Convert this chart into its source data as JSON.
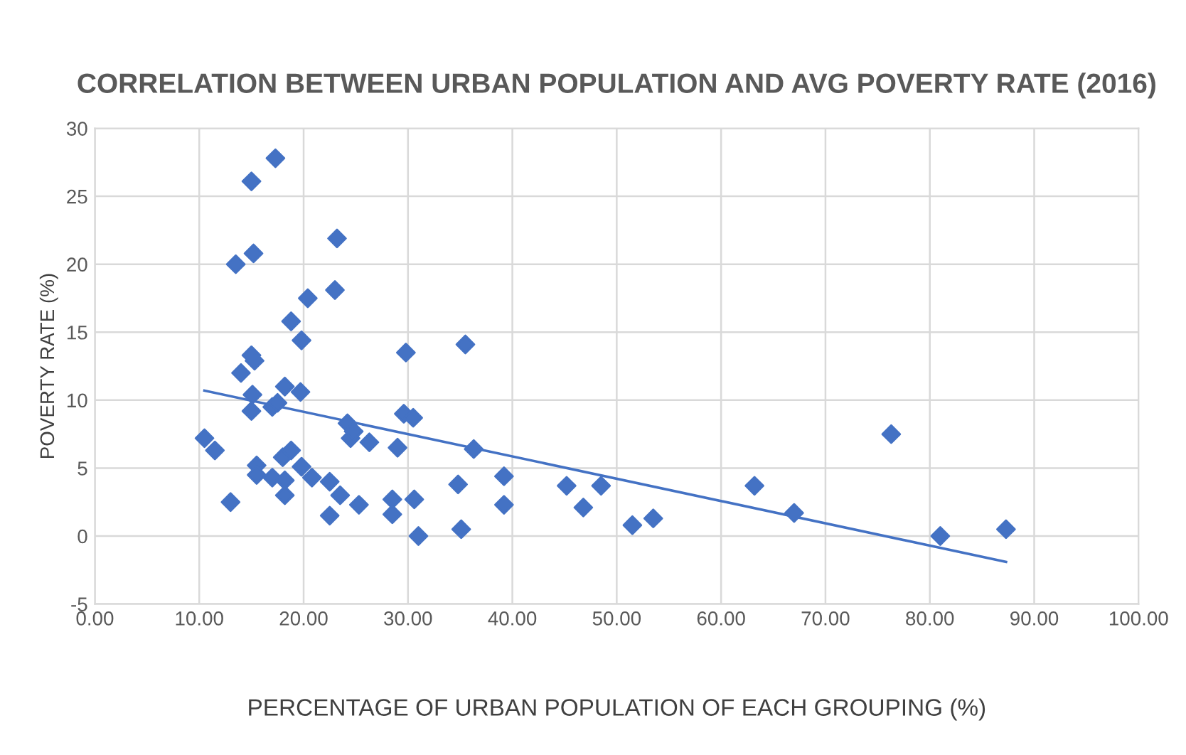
{
  "chart_data": {
    "type": "scatter",
    "title": "CORRELATION BETWEEN URBAN POPULATION AND AVG POVERTY RATE (2016)",
    "xlabel": "PERCENTAGE OF URBAN POPULATION OF EACH GROUPING (%)",
    "ylabel": "POVERTY RATE (%)",
    "series": [
      {
        "color": "#4472c4",
        "marker": "diamond",
        "x": [
          10.5,
          11.5,
          13,
          13.5,
          14,
          15,
          15.2,
          15,
          15.3,
          15.1,
          15,
          15.5,
          15.5,
          17,
          17.3,
          17,
          17.5,
          18,
          18.2,
          18.2,
          18.2,
          18.8,
          18.8,
          19.7,
          19.8,
          19.8,
          20.4,
          20.8,
          22.5,
          22.5,
          23,
          23.2,
          23.5,
          24.2,
          24.5,
          24.8,
          25.3,
          26.3,
          28.5,
          28.5,
          29,
          29.8,
          29.6,
          30.5,
          30.6,
          31,
          34.8,
          35.1,
          35.5,
          36.3,
          39.2,
          39.2,
          45.2,
          46.8,
          48.5,
          51.5,
          53.5,
          63.2,
          67,
          76.3,
          81,
          87.3
        ],
        "values": [
          7.2,
          6.3,
          2.5,
          20,
          12,
          26.1,
          20.8,
          13.3,
          12.9,
          10.4,
          9.2,
          5.2,
          4.5,
          4.3,
          27.8,
          9.5,
          9.8,
          5.8,
          4.1,
          3,
          11,
          6.3,
          15.8,
          10.6,
          14.4,
          5.1,
          17.5,
          4.3,
          4,
          1.5,
          18.1,
          21.9,
          3,
          8.3,
          7.2,
          7.7,
          2.3,
          6.9,
          2.7,
          1.6,
          6.5,
          13.5,
          9,
          8.7,
          2.7,
          0,
          3.8,
          0.5,
          14.1,
          6.4,
          4.4,
          2.3,
          3.7,
          2.1,
          3.7,
          0.8,
          1.3,
          3.7,
          1.7,
          7.5,
          0,
          0.5
        ]
      },
      {
        "type": "line",
        "color": "#4472c4",
        "marker": "none",
        "line_style": "solid",
        "x": [
          10.5,
          87.3
        ],
        "values": [
          10.7,
          -1.9
        ]
      }
    ],
    "xlim": [
      0,
      100
    ],
    "xticks": [
      {
        "value": 0,
        "label": "0.00"
      },
      {
        "value": 10,
        "label": "10.00"
      },
      {
        "value": 20,
        "label": "20.00"
      },
      {
        "value": 30,
        "label": "30.00"
      },
      {
        "value": 40,
        "label": "40.00"
      },
      {
        "value": 50,
        "label": "50.00"
      },
      {
        "value": 60,
        "label": "60.00"
      },
      {
        "value": 70,
        "label": "70.00"
      },
      {
        "value": 80,
        "label": "80.00"
      },
      {
        "value": 90,
        "label": "90.00"
      },
      {
        "value": 100,
        "label": "100.00"
      }
    ],
    "ylim": [
      -5,
      30
    ],
    "yticks": [
      -5,
      0,
      5,
      10,
      15,
      20,
      25,
      30
    ],
    "grid": true,
    "legend": false
  }
}
